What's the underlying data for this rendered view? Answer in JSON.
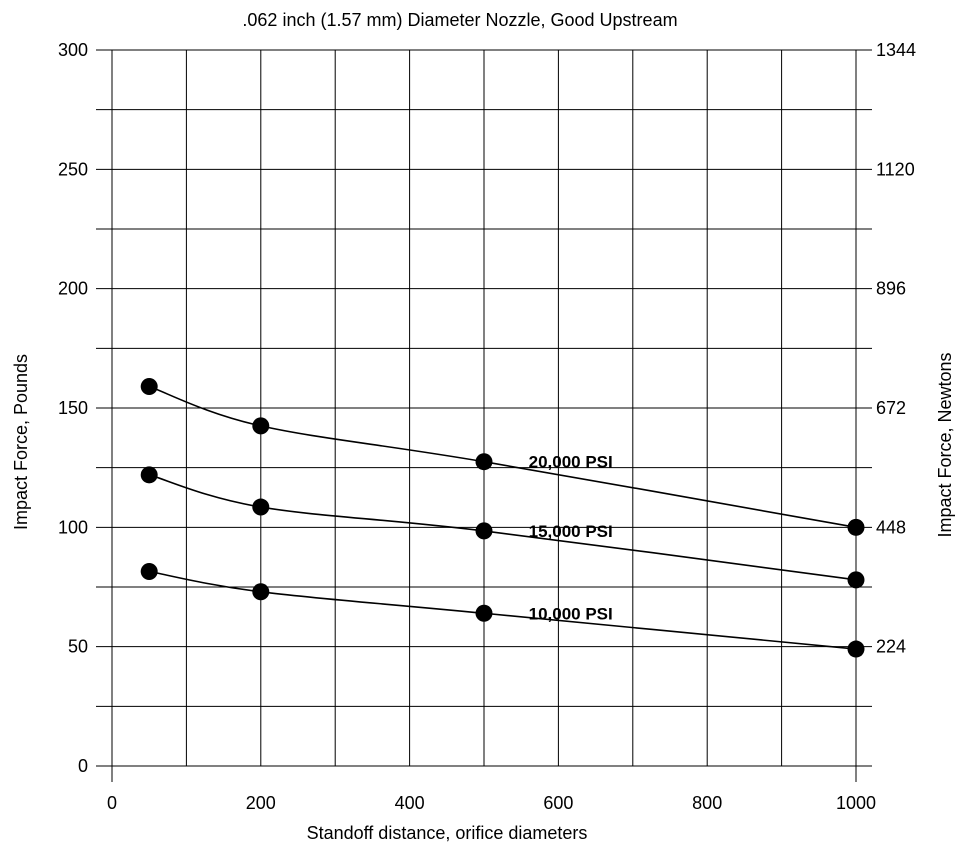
{
  "chart_data": {
    "type": "line",
    "title": ".062 inch (1.57 mm) Diameter Nozzle, Good Upstream",
    "xlabel": "Standoff distance, orifice diameters",
    "ylabel": "Impact Force, Pounds",
    "y2label": "Impact Force, Newtons",
    "xlim": [
      0,
      1000
    ],
    "ylim": [
      0,
      300
    ],
    "xticks": [
      0,
      200,
      400,
      600,
      800,
      1000
    ],
    "xtick_labels": [
      "0",
      "200",
      "400",
      "600",
      "800",
      "1000"
    ],
    "yticks": [
      0,
      50,
      100,
      150,
      200,
      250,
      300
    ],
    "ytick_labels": [
      "0",
      "50",
      "100",
      "150",
      "200",
      "250",
      "300"
    ],
    "y2ticks": [
      50,
      100,
      150,
      200,
      250,
      300
    ],
    "y2tick_labels": [
      "224",
      "448",
      "672",
      "896",
      "1120",
      "1344"
    ],
    "grid": true,
    "series": [
      {
        "name": "20,000 PSI",
        "x": [
          50,
          200,
          500,
          1000
        ],
        "y": [
          159,
          142.5,
          127.5,
          100
        ]
      },
      {
        "name": "15,000 PSI",
        "x": [
          50,
          200,
          500,
          1000
        ],
        "y": [
          122,
          108.5,
          98.5,
          78
        ]
      },
      {
        "name": "10,000 PSI",
        "x": [
          50,
          200,
          500,
          1000
        ],
        "y": [
          81.5,
          73,
          64,
          49
        ]
      }
    ]
  }
}
